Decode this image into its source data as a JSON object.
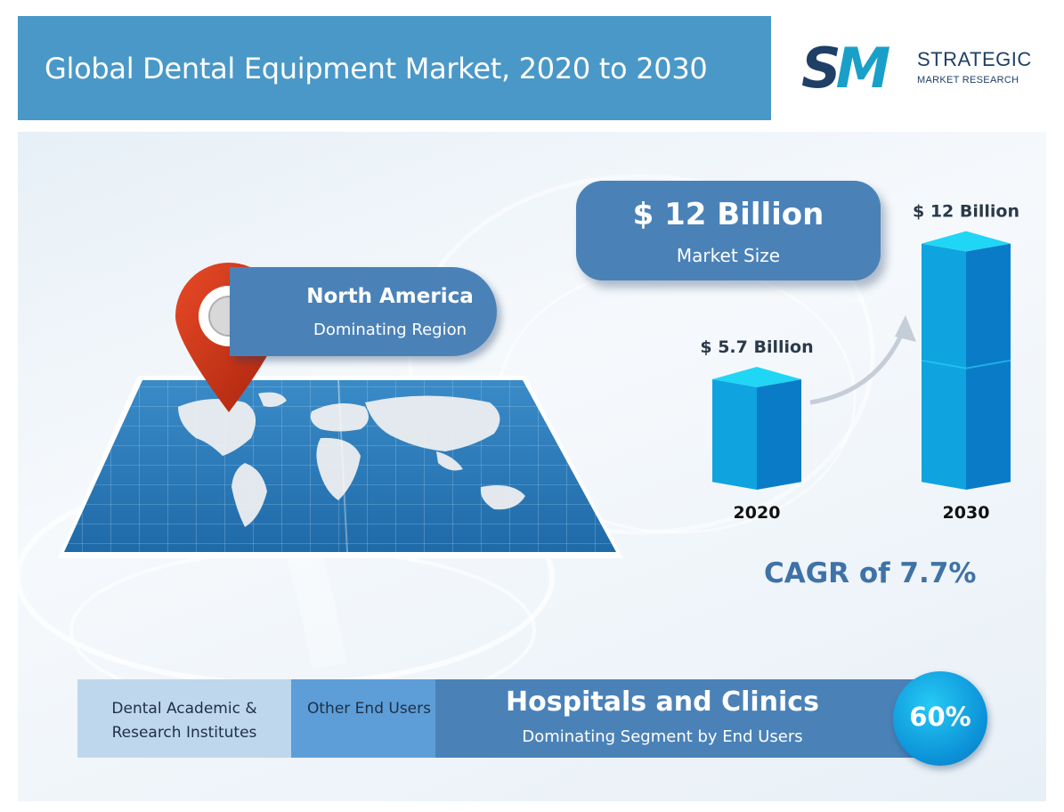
{
  "title": "Global Dental Equipment Market, 2020 to 2030",
  "logo": {
    "mark": "SM",
    "line1": "STRATEGIC",
    "line2": "MARKET RESEARCH"
  },
  "market_size": {
    "value": "$ 12 Billion",
    "label": "Market Size"
  },
  "region": {
    "name": "North America",
    "label": "Dominating Region"
  },
  "cagr": "CAGR of 7.7%",
  "segments": {
    "seg1": "Dental Academic & Research Institutes",
    "seg2": "Other End Users",
    "dominant_title": "Hospitals and Clinics",
    "dominant_sub": "Dominating Segment by End Users",
    "share": "60%",
    "share_value": 60
  },
  "chart_data": {
    "type": "bar",
    "categories": [
      "2020",
      "2030"
    ],
    "values": [
      5.7,
      12
    ],
    "value_labels": [
      "$ 5.7 Billion",
      "$ 12 Billion"
    ],
    "unit": "Billion USD",
    "colors": {
      "bar_top": "#1fd6f5",
      "bar_face": "#0fa3e0",
      "bar_side": "#0a7cc7"
    }
  },
  "colors": {
    "title_bar": "#4a98c8",
    "accent_blue": "#4a82b8",
    "cagr": "#3f72a6",
    "pin": "#d63a1e"
  },
  "icons": [
    "location-pin-icon",
    "world-map-icon",
    "growth-arrow-icon"
  ]
}
